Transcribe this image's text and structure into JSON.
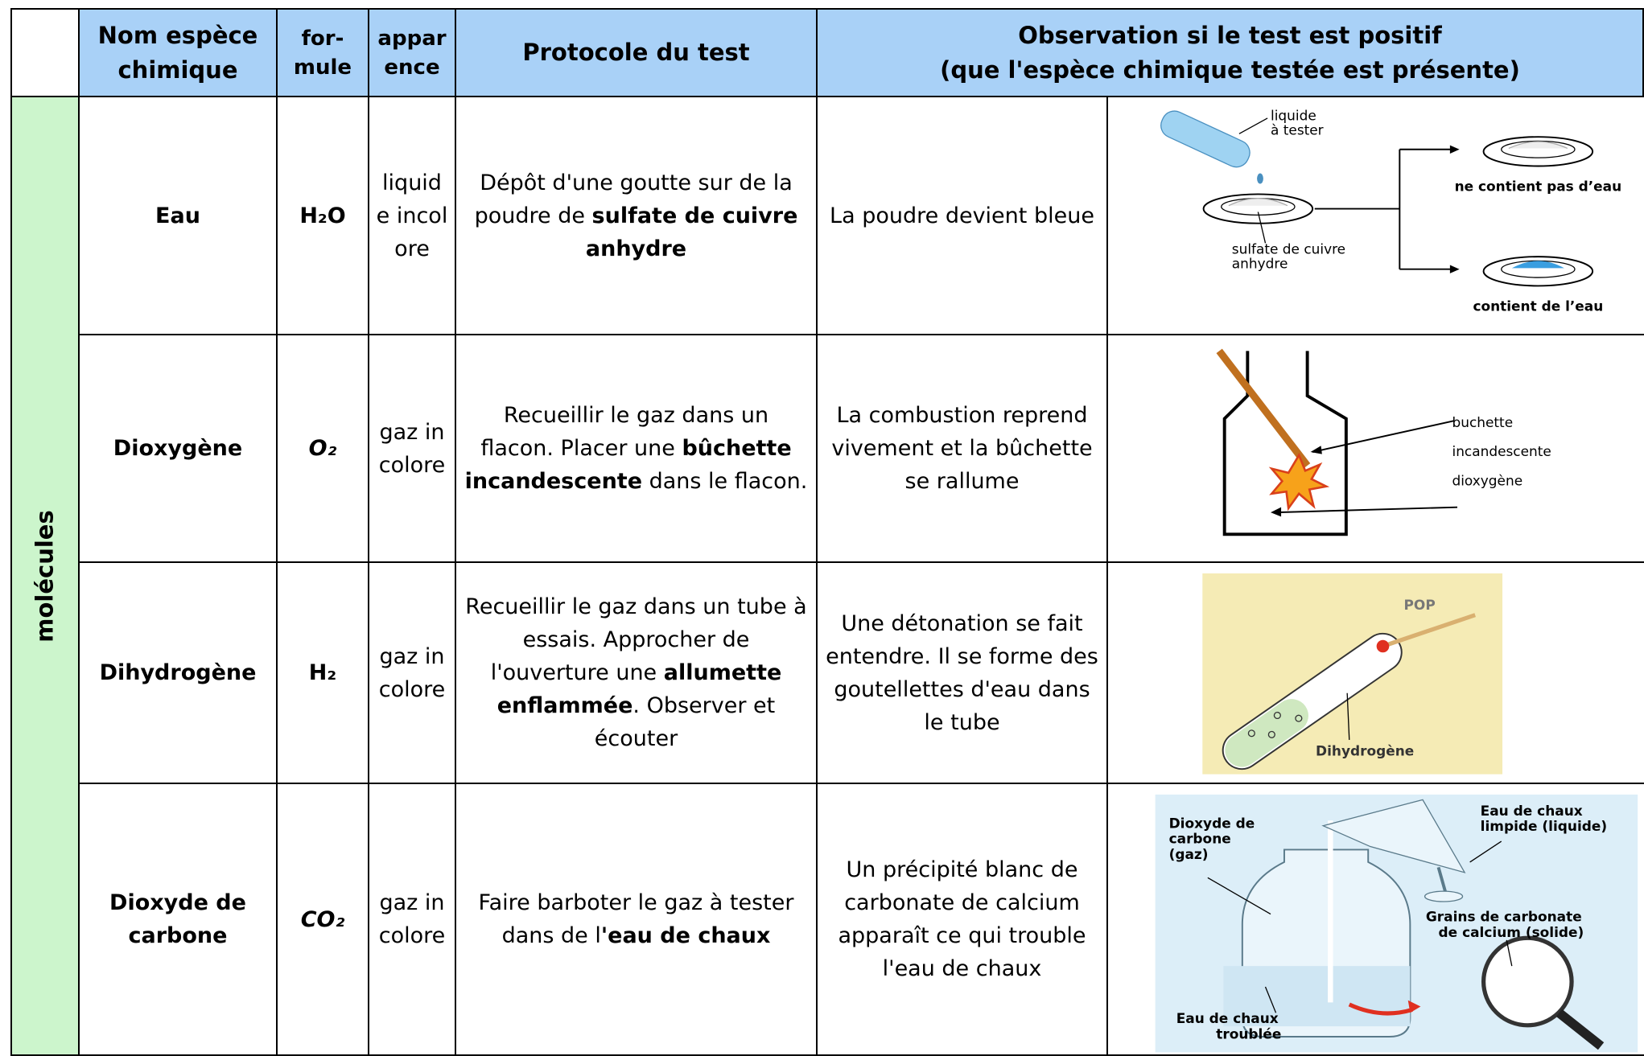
{
  "header": {
    "columns": [
      "Nom espèce chimique",
      "for- mule",
      "appar ence",
      "Protocole du test"
    ],
    "observation": [
      "Observation si le test est positif",
      "(que l'espèce chimique testée est présente)"
    ]
  },
  "side_label": "molécules",
  "rows": [
    {
      "name": "Eau",
      "formula": "H₂O",
      "appearance": "liquide incolore",
      "protocol": [
        "Dépôt d'une goutte sur de la poudre de ",
        "sulfate de cuivre anhydre"
      ],
      "observation": "La poudre devient bleue",
      "figure": {
        "labels": [
          [
            "liquide",
            "à tester"
          ],
          [
            "sulfate de cuivre",
            "anhydre"
          ],
          [
            "ne contient pas d’eau"
          ],
          [
            "contient de l’eau"
          ]
        ]
      }
    },
    {
      "name": "Dioxygène",
      "formula": "O₂",
      "appearance": "gaz incolore",
      "protocol": [
        "Recueillir le gaz dans un flacon. Placer une ",
        "bûchette incandescente",
        " dans le flacon."
      ],
      "observation": "La combustion reprend vivement et la bûchette se rallume",
      "figure": {
        "labels": [
          [
            "buchette",
            "incandescente",
            "dioxygène"
          ]
        ]
      }
    },
    {
      "name": "Dihydrogène",
      "formula": "H₂",
      "appearance": "gaz incolore",
      "protocol": [
        "Recueillir le gaz dans un tube à essais. Approcher de l'ouverture une ",
        "allumette enflammée",
        ". Observer et écouter"
      ],
      "observation": "Une détonation se fait entendre. Il se forme des goutellettes d'eau dans le tube",
      "figure": {
        "labels": [
          [
            "POP"
          ],
          [
            "Dihydrogène"
          ]
        ]
      }
    },
    {
      "name": "Dioxyde de carbone",
      "formula": "CO₂",
      "appearance": "gaz incolore",
      "protocol": [
        "Faire barboter le gaz à tester dans de l",
        "'eau de chaux"
      ],
      "observation": "Un précipité blanc de carbonate de calcium apparaît ce qui trouble l'eau de chaux",
      "figure": {
        "labels": [
          [
            "Dioxyde de",
            "carbone",
            "(gaz)"
          ],
          [
            "Eau de chaux",
            "limpide (liquide)"
          ],
          [
            "Grains de carbonate",
            "de calcium (solide)"
          ],
          [
            "Eau de chaux",
            "troublée"
          ]
        ]
      }
    }
  ]
}
